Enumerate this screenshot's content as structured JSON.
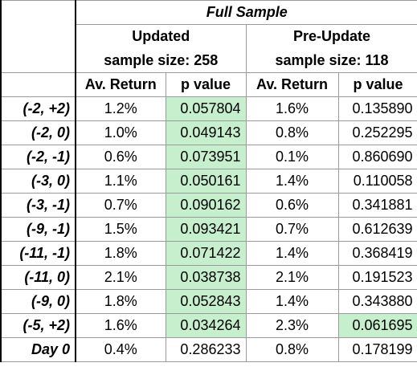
{
  "header": {
    "title": "Full Sample"
  },
  "groups": [
    {
      "name": "Updated",
      "sample_size": "sample size: 258"
    },
    {
      "name": "Pre-Update",
      "sample_size": "sample size: 118"
    }
  ],
  "columns": [
    "Av. Return",
    "p value",
    "Av. Return",
    "p value"
  ],
  "highlight_color": "#c6efce",
  "rows": [
    {
      "label": "(-2, +2)",
      "values": [
        "1.2%",
        "0.057804",
        "1.6%",
        "0.135890"
      ],
      "highlight": [
        false,
        true,
        false,
        false
      ]
    },
    {
      "label": "(-2, 0)",
      "values": [
        "1.0%",
        "0.049143",
        "0.8%",
        "0.252295"
      ],
      "highlight": [
        false,
        true,
        false,
        false
      ]
    },
    {
      "label": "(-2, -1)",
      "values": [
        "0.6%",
        "0.073951",
        "0.1%",
        "0.860690"
      ],
      "highlight": [
        false,
        true,
        false,
        false
      ]
    },
    {
      "label": "(-3, 0)",
      "values": [
        "1.1%",
        "0.050161",
        "1.4%",
        "0.110058"
      ],
      "highlight": [
        false,
        true,
        false,
        false
      ]
    },
    {
      "label": "(-3, -1)",
      "values": [
        "0.7%",
        "0.090162",
        "0.6%",
        "0.341881"
      ],
      "highlight": [
        false,
        true,
        false,
        false
      ]
    },
    {
      "label": "(-9, -1)",
      "values": [
        "1.5%",
        "0.093421",
        "0.7%",
        "0.612639"
      ],
      "highlight": [
        false,
        true,
        false,
        false
      ]
    },
    {
      "label": "(-11, -1)",
      "values": [
        "1.8%",
        "0.071422",
        "1.4%",
        "0.368419"
      ],
      "highlight": [
        false,
        true,
        false,
        false
      ]
    },
    {
      "label": "(-11, 0)",
      "values": [
        "2.1%",
        "0.038738",
        "2.1%",
        "0.191523"
      ],
      "highlight": [
        false,
        true,
        false,
        false
      ]
    },
    {
      "label": "(-9, 0)",
      "values": [
        "1.8%",
        "0.052843",
        "1.4%",
        "0.343880"
      ],
      "highlight": [
        false,
        true,
        false,
        false
      ]
    },
    {
      "label": "(-5, +2)",
      "values": [
        "1.6%",
        "0.034264",
        "2.3%",
        "0.061695"
      ],
      "highlight": [
        false,
        true,
        false,
        true
      ]
    },
    {
      "label": "Day 0",
      "values": [
        "0.4%",
        "0.286233",
        "0.8%",
        "0.178199"
      ],
      "highlight": [
        false,
        false,
        false,
        false
      ]
    }
  ]
}
